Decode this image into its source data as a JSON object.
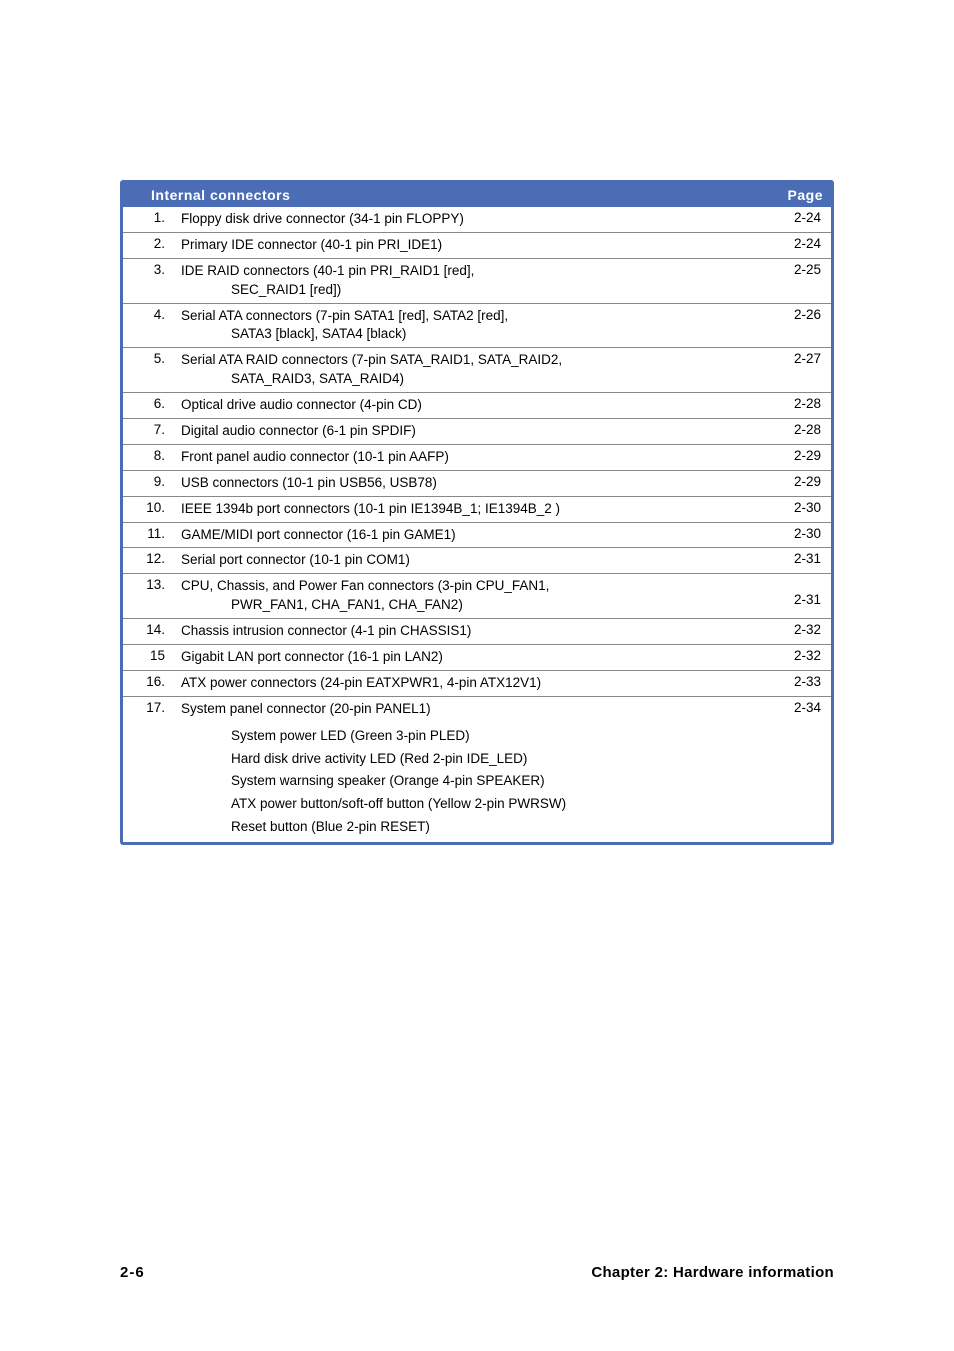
{
  "header": {
    "title": "Internal connectors",
    "page_label": "Page"
  },
  "rows": [
    {
      "num": "1.",
      "desc": "Floppy disk drive connector (34-1 pin FLOPPY)",
      "page": "2-24"
    },
    {
      "num": "2.",
      "desc": "Primary IDE connector (40-1 pin PRI_IDE1)",
      "page": "2-24"
    },
    {
      "num": "3.",
      "desc": "IDE RAID connectors (40-1 pin PRI_RAID1 [red],",
      "desc2": "SEC_RAID1 [red])",
      "page": "2-25"
    },
    {
      "num": "4.",
      "desc": "Serial ATA connectors (7-pin SATA1 [red], SATA2 [red],",
      "desc2": "SATA3 [black], SATA4 [black)",
      "page": "2-26"
    },
    {
      "num": "5.",
      "desc": "Serial ATA RAID connectors (7-pin SATA_RAID1, SATA_RAID2,",
      "desc2": "SATA_RAID3, SATA_RAID4)",
      "page": "2-27"
    },
    {
      "num": "6.",
      "desc": "Optical drive audio connector (4-pin CD)",
      "page": "2-28"
    },
    {
      "num": "7.",
      "desc": "Digital audio connector (6-1 pin SPDIF)",
      "page": "2-28"
    },
    {
      "num": "8.",
      "desc": "Front panel audio connector (10-1 pin AAFP)",
      "page": "2-29"
    },
    {
      "num": "9.",
      "desc": "USB connectors (10-1 pin USB56, USB78)",
      "page": "2-29"
    },
    {
      "num": "10.",
      "desc": "IEEE 1394b port connectors (10-1 pin IE1394B_1; IE1394B_2 )",
      "page": "2-30"
    },
    {
      "num": "11.",
      "desc": "GAME/MIDI port connector (16-1 pin GAME1)",
      "page": "2-30"
    },
    {
      "num": "12.",
      "desc": "Serial port connector (10-1 pin COM1)",
      "page": "2-31"
    },
    {
      "num": "13.",
      "desc": "CPU, Chassis, and Power Fan connectors (3-pin CPU_FAN1,",
      "desc2": "PWR_FAN1, CHA_FAN1, CHA_FAN2)",
      "page": "2-31",
      "page_bottom": true
    },
    {
      "num": "14.",
      "desc": "Chassis intrusion connector (4-1 pin CHASSIS1)",
      "page": "2-32"
    },
    {
      "num": "15",
      "desc": "Gigabit LAN port connector (16-1 pin LAN2)",
      "page": "2-32"
    },
    {
      "num": "16.",
      "desc": "ATX power connectors (24-pin EATXPWR1, 4-pin ATX12V1)",
      "page": "2-33"
    },
    {
      "num": "17.",
      "desc": "System panel connector (20-pin PANEL1)",
      "page": "2-34",
      "sub": [
        "System power LED (Green 3-pin PLED)",
        "Hard disk drive activity LED (Red 2-pin IDE_LED)",
        "System warnsing speaker (Orange 4-pin SPEAKER)",
        "ATX power button/soft-off button (Yellow 2-pin PWRSW)",
        "Reset button (Blue 2-pin RESET)"
      ]
    }
  ],
  "footer": {
    "page_num": "2-6",
    "chapter": "Chapter 2: Hardware information"
  },
  "colors": {
    "header_bg": "#4a6db5",
    "header_text": "#ffffff",
    "row_border": "#888888",
    "text_color": "#000000",
    "wrapper_border": "#4a6db5"
  },
  "typography": {
    "body_font": "Verdana, Geneva, sans-serif",
    "header_fontsize": 14,
    "row_fontsize": 13.5,
    "footer_fontsize": 15
  }
}
